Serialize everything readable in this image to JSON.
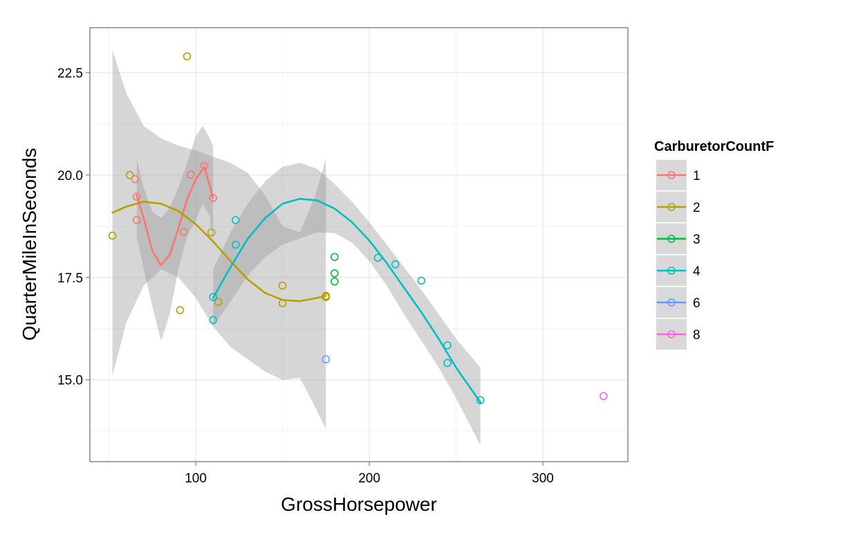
{
  "chart_data": {
    "type": "scatter",
    "title": "",
    "xlabel": "GrossHorsepower",
    "ylabel": "QuarterMileInSeconds",
    "xlim": [
      39,
      349
    ],
    "ylim": [
      13.0,
      23.6
    ],
    "xticks": [
      100,
      200,
      300
    ],
    "xtick_labels": [
      "100",
      "200",
      "300"
    ],
    "yticks": [
      15.0,
      17.5,
      20.0,
      22.5
    ],
    "ytick_labels": [
      "15.0",
      "17.5",
      "20.0",
      "22.5"
    ],
    "grid": true,
    "legend": {
      "title": "CarburetorCountF",
      "placement": "right"
    },
    "series": [
      {
        "name": "1",
        "color": "#F8766D",
        "points": [
          [
            66,
            19.47
          ],
          [
            66,
            18.9
          ],
          [
            65,
            19.9
          ],
          [
            93,
            18.61
          ],
          [
            97,
            20.01
          ],
          [
            105,
            20.22
          ],
          [
            110,
            19.44
          ]
        ],
        "smooth": [
          [
            66,
            19.5
          ],
          [
            70,
            18.95
          ],
          [
            75,
            18.15
          ],
          [
            80,
            17.8
          ],
          [
            85,
            18.05
          ],
          [
            90,
            18.7
          ],
          [
            95,
            19.4
          ],
          [
            100,
            19.9
          ],
          [
            105,
            20.2
          ],
          [
            110,
            19.45
          ]
        ],
        "band_upper": [
          [
            66,
            20.4
          ],
          [
            70,
            19.7
          ],
          [
            75,
            19.1
          ],
          [
            80,
            18.95
          ],
          [
            85,
            19.2
          ],
          [
            90,
            19.7
          ],
          [
            95,
            20.3
          ],
          [
            100,
            20.95
          ],
          [
            104,
            21.2
          ],
          [
            108,
            20.9
          ],
          [
            110,
            20.7
          ]
        ],
        "band_lower": [
          [
            110,
            18.3
          ],
          [
            108,
            19.0
          ],
          [
            104,
            19.3
          ],
          [
            100,
            18.9
          ],
          [
            95,
            18.5
          ],
          [
            90,
            17.7
          ],
          [
            85,
            16.6
          ],
          [
            80,
            15.95
          ],
          [
            75,
            16.8
          ],
          [
            70,
            17.7
          ],
          [
            66,
            18.5
          ]
        ]
      },
      {
        "name": "2",
        "color": "#B79F00",
        "points": [
          [
            52,
            18.52
          ],
          [
            62,
            20.0
          ],
          [
            91,
            16.7
          ],
          [
            95,
            22.9
          ],
          [
            109,
            18.6
          ],
          [
            113,
            16.9
          ],
          [
            150,
            17.3
          ],
          [
            150,
            16.87
          ],
          [
            175,
            17.02
          ],
          [
            175,
            17.05
          ]
        ],
        "smooth": [
          [
            52,
            19.08
          ],
          [
            60,
            19.23
          ],
          [
            70,
            19.35
          ],
          [
            80,
            19.3
          ],
          [
            90,
            19.12
          ],
          [
            100,
            18.8
          ],
          [
            110,
            18.38
          ],
          [
            120,
            17.9
          ],
          [
            130,
            17.45
          ],
          [
            140,
            17.12
          ],
          [
            150,
            16.95
          ],
          [
            160,
            16.92
          ],
          [
            170,
            17.0
          ],
          [
            175,
            17.05
          ]
        ],
        "band_upper": [
          [
            52,
            23.05
          ],
          [
            60,
            22.0
          ],
          [
            70,
            21.2
          ],
          [
            80,
            20.9
          ],
          [
            90,
            20.72
          ],
          [
            100,
            20.6
          ],
          [
            110,
            20.45
          ],
          [
            120,
            20.3
          ],
          [
            130,
            20.05
          ],
          [
            140,
            19.5
          ],
          [
            150,
            18.75
          ],
          [
            160,
            18.6
          ],
          [
            168,
            19.4
          ],
          [
            175,
            20.4
          ]
        ],
        "band_lower": [
          [
            175,
            13.8
          ],
          [
            168,
            14.4
          ],
          [
            160,
            15.05
          ],
          [
            150,
            15.0
          ],
          [
            140,
            15.2
          ],
          [
            130,
            15.5
          ],
          [
            120,
            15.8
          ],
          [
            110,
            16.3
          ],
          [
            100,
            17.0
          ],
          [
            90,
            17.5
          ],
          [
            80,
            17.7
          ],
          [
            70,
            17.3
          ],
          [
            60,
            16.4
          ],
          [
            52,
            15.1
          ]
        ]
      },
      {
        "name": "3",
        "color": "#00BA38",
        "points": [
          [
            180,
            17.4
          ],
          [
            180,
            17.6
          ],
          [
            180,
            18.0
          ]
        ]
      },
      {
        "name": "4",
        "color": "#00BFC4",
        "points": [
          [
            110,
            17.02
          ],
          [
            110,
            16.46
          ],
          [
            123,
            18.3
          ],
          [
            123,
            18.9
          ],
          [
            205,
            17.98
          ],
          [
            215,
            17.82
          ],
          [
            230,
            17.42
          ],
          [
            245,
            15.84
          ],
          [
            245,
            15.41
          ],
          [
            264,
            14.5
          ]
        ],
        "smooth": [
          [
            110,
            17.0
          ],
          [
            120,
            17.75
          ],
          [
            130,
            18.45
          ],
          [
            140,
            18.95
          ],
          [
            150,
            19.3
          ],
          [
            160,
            19.42
          ],
          [
            170,
            19.38
          ],
          [
            180,
            19.18
          ],
          [
            190,
            18.85
          ],
          [
            200,
            18.4
          ],
          [
            210,
            17.85
          ],
          [
            220,
            17.25
          ],
          [
            230,
            16.65
          ],
          [
            240,
            16.0
          ],
          [
            250,
            15.3
          ],
          [
            264,
            14.45
          ]
        ],
        "band_upper": [
          [
            110,
            17.7
          ],
          [
            120,
            18.6
          ],
          [
            130,
            19.3
          ],
          [
            140,
            19.85
          ],
          [
            150,
            20.2
          ],
          [
            160,
            20.3
          ],
          [
            170,
            20.15
          ],
          [
            180,
            19.78
          ],
          [
            190,
            19.35
          ],
          [
            200,
            18.85
          ],
          [
            210,
            18.3
          ],
          [
            220,
            17.75
          ],
          [
            230,
            17.2
          ],
          [
            240,
            16.6
          ],
          [
            250,
            16.0
          ],
          [
            264,
            15.3
          ]
        ],
        "band_lower": [
          [
            264,
            13.4
          ],
          [
            250,
            14.55
          ],
          [
            240,
            15.3
          ],
          [
            230,
            15.95
          ],
          [
            220,
            16.6
          ],
          [
            210,
            17.3
          ],
          [
            200,
            17.9
          ],
          [
            190,
            18.35
          ],
          [
            180,
            18.58
          ],
          [
            170,
            18.6
          ],
          [
            160,
            18.45
          ],
          [
            150,
            18.3
          ],
          [
            140,
            18.0
          ],
          [
            130,
            17.55
          ],
          [
            120,
            16.9
          ],
          [
            110,
            16.3
          ]
        ]
      },
      {
        "name": "6",
        "color": "#619CFF",
        "points": [
          [
            175,
            15.5
          ]
        ]
      },
      {
        "name": "8",
        "color": "#F564E3",
        "points": [
          [
            335,
            14.6
          ]
        ]
      }
    ]
  }
}
